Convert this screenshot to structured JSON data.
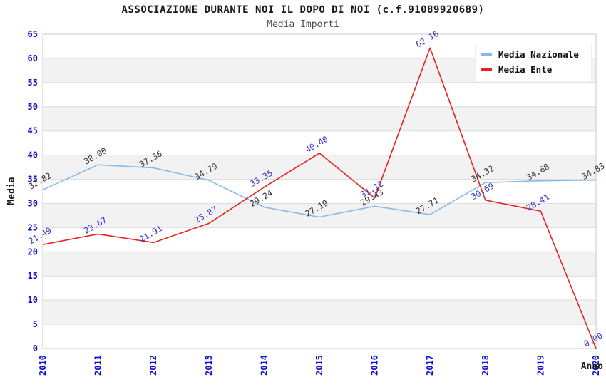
{
  "header": {
    "title": "ASSOCIAZIONE DURANTE NOI IL DOPO DI NOI (c.f.91089920689)",
    "subtitle": "Media Importi"
  },
  "chart_data": {
    "type": "line",
    "title": "ASSOCIAZIONE DURANTE NOI IL DOPO DI NOI (c.f.91089920689)",
    "subtitle": "Media Importi",
    "xlabel": "Anno",
    "ylabel": "Media",
    "x": [
      "2010",
      "2011",
      "2012",
      "2013",
      "2014",
      "2015",
      "2016",
      "2017",
      "2018",
      "2019",
      "2020"
    ],
    "ylim": [
      0,
      65
    ],
    "y_ticks": [
      0,
      5,
      10,
      15,
      20,
      25,
      30,
      35,
      40,
      45,
      50,
      55,
      60,
      65
    ],
    "grid": "horizontal gridlines every 5 with alternating shaded bands",
    "legend_position": "top-right",
    "series": [
      {
        "name": "Media Nazionale",
        "color": "#8cb8e8",
        "label_color": "#333333",
        "values": [
          32.82,
          38.0,
          37.36,
          34.79,
          29.24,
          27.19,
          29.43,
          27.71,
          34.32,
          34.68,
          34.83
        ]
      },
      {
        "name": "Media Ente",
        "color": "#e62222",
        "label_color": "#3333cc",
        "values": [
          21.49,
          23.67,
          21.91,
          25.87,
          33.35,
          40.4,
          31.12,
          62.16,
          30.69,
          28.41,
          0.0
        ]
      }
    ]
  },
  "colors": {
    "tick_text": "#1111cc",
    "band_fill": "#f2f2f2",
    "grid_line": "#dcdcdc",
    "plot_border": "#c9c9c9",
    "title_text": "#1a1a1a",
    "subtitle_text": "#4a4a4a",
    "legend_bg": "#ffffff"
  }
}
